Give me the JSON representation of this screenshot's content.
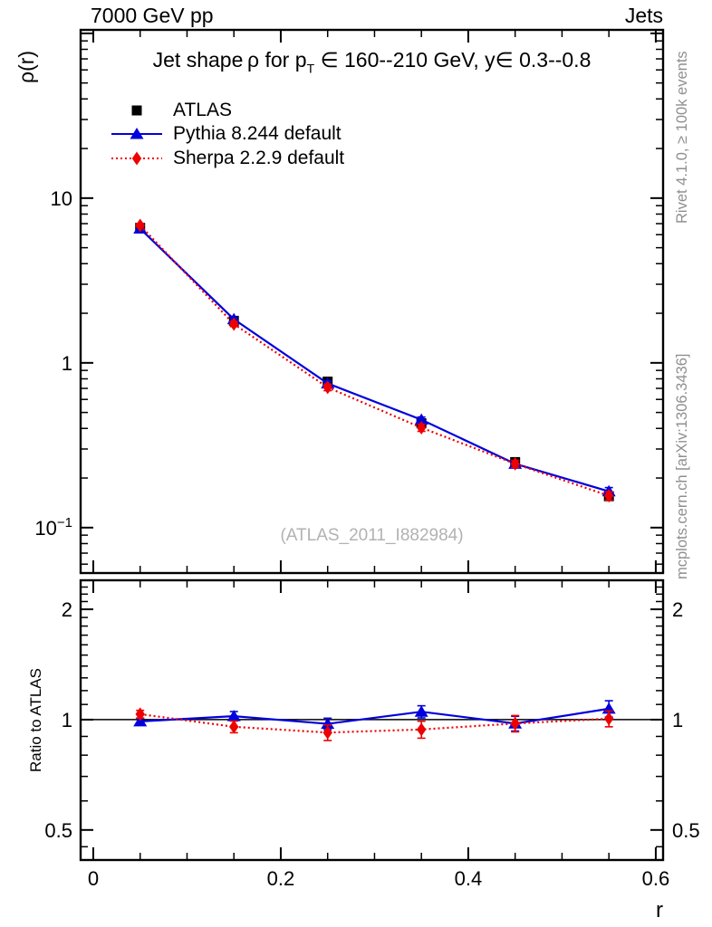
{
  "header": {
    "left": "7000 GeV pp",
    "right": "Jets"
  },
  "title": {
    "pre": "Jet shape ρ for p",
    "sub": "T",
    "post": " ∈ 160--210 GeV, y∈ 0.3--0.8"
  },
  "watermark": "(ATLAS_2011_I882984)",
  "captions": {
    "right_top": "Rivet 4.1.0, ≥ 100k events",
    "right_bottom": "mcplots.cern.ch [arXiv:1306.3436]"
  },
  "axes": {
    "ylabel_main": "ρ(r)",
    "ylabel_ratio": "Ratio to ATLAS",
    "xlabel": "r"
  },
  "chart_data": {
    "type": "line",
    "title": "Jet shape ρ for p_T ∈ 160--210 GeV, y∈ 0.3--0.8",
    "xlabel": "r",
    "ylabel": "ρ(r)",
    "legend_position": "top-left",
    "grid": false,
    "x": [
      0.05,
      0.15,
      0.25,
      0.35,
      0.45,
      0.55
    ],
    "xlim": [
      -0.0135,
      0.6078
    ],
    "ylim": [
      0.053,
      105
    ],
    "yscale": "log",
    "x_major": [
      {
        "v": 0.0,
        "label": "0"
      },
      {
        "v": 0.2,
        "label": "0.2"
      },
      {
        "v": 0.4,
        "label": "0.4"
      },
      {
        "v": 0.6,
        "label": "0.6"
      }
    ],
    "x_minor_step": 0.05,
    "y_major": [
      {
        "v": 100,
        "label": ""
      },
      {
        "v": 10,
        "label": "10"
      },
      {
        "v": 1,
        "label": "1"
      },
      {
        "v": 0.1,
        "label": "10",
        "exp": "−1"
      }
    ],
    "series": [
      {
        "name": "ATLAS",
        "color": "#000000",
        "marker": "square",
        "line": null,
        "values": [
          6.6,
          1.8,
          0.77,
          0.43,
          0.25,
          0.155
        ],
        "errors": [
          0.15,
          0.045,
          0.02,
          0.012,
          0.008,
          0.006
        ]
      },
      {
        "name": "Pythia 8.244 default",
        "color": "#0000dd",
        "marker": "triangle",
        "line": "solid",
        "values": [
          6.53,
          1.84,
          0.75,
          0.452,
          0.244,
          0.166
        ],
        "errors": [
          0.12,
          0.05,
          0.026,
          0.017,
          0.011,
          0.009
        ]
      },
      {
        "name": "Sherpa 2.2.9 default",
        "color": "#ee0000",
        "marker": "diamond",
        "line": "dotted",
        "values": [
          6.83,
          1.72,
          0.71,
          0.404,
          0.244,
          0.156
        ],
        "errors": [
          0.16,
          0.06,
          0.032,
          0.02,
          0.012,
          0.009
        ]
      }
    ],
    "ratio": {
      "ylabel": "Ratio to ATLAS",
      "ylim": [
        0.414,
        2.4
      ],
      "yscale": "log",
      "reference_line": 1,
      "y_major": [
        {
          "v": 2,
          "label": "2"
        },
        {
          "v": 1,
          "label": "1"
        },
        {
          "v": 0.5,
          "label": "0.5"
        }
      ],
      "y_minor": [
        0.45,
        0.6,
        0.7,
        0.8,
        0.9,
        1.1,
        1.2,
        1.3,
        1.4,
        1.5,
        1.6,
        1.7,
        1.8,
        1.9,
        2.1,
        2.2,
        2.3,
        2.4
      ],
      "series": [
        {
          "name": "Pythia 8.244 default",
          "color": "#0000dd",
          "marker": "triangle",
          "line": "solid",
          "values": [
            0.989,
            1.022,
            0.974,
            1.051,
            0.976,
            1.071
          ],
          "errors": [
            0.02,
            0.03,
            0.035,
            0.04,
            0.045,
            0.055
          ]
        },
        {
          "name": "Sherpa 2.2.9 default",
          "color": "#ee0000",
          "marker": "diamond",
          "line": "dotted",
          "values": [
            1.035,
            0.956,
            0.922,
            0.94,
            0.976,
            1.006
          ],
          "errors": [
            0.025,
            0.035,
            0.045,
            0.05,
            0.05,
            0.05
          ]
        }
      ]
    }
  }
}
